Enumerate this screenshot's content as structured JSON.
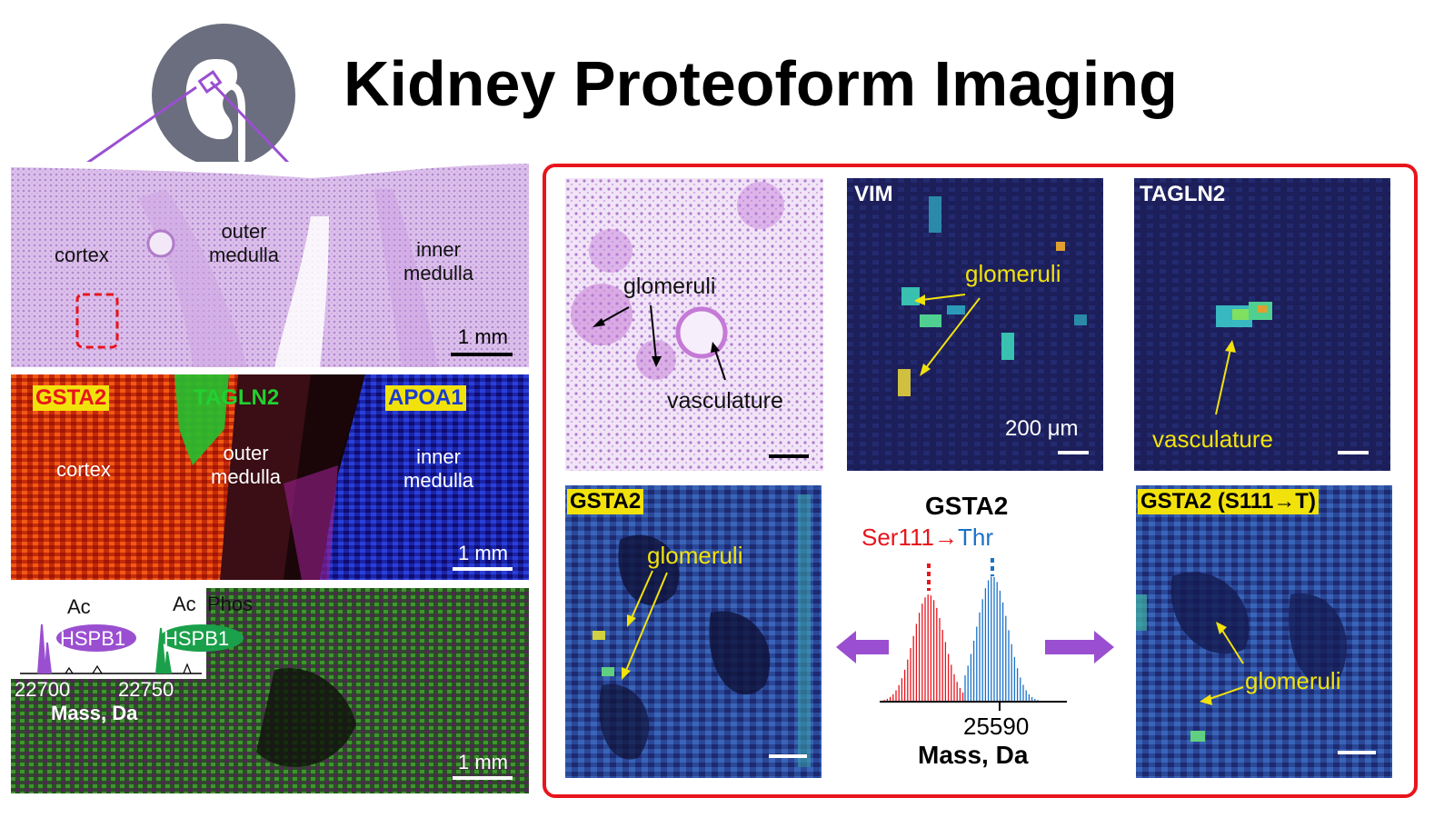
{
  "title": "Kidney Proteoform Imaging",
  "colors": {
    "frame": "#e8141c",
    "purple": "#9a4fd0",
    "yellow": "#f2e20c",
    "he_pink": "#d9b6e8",
    "heat_bg": "#1c1f5a",
    "kidney_icon": "#6b6e7e"
  },
  "icons": [
    "kidney-icon",
    "arrow-left",
    "arrow-right"
  ],
  "he_section": {
    "cortex": "cortex",
    "outer_medulla": "outer\nmedulla",
    "inner_medulla": "inner\nmedulla",
    "scale": "1 mm"
  },
  "overlay_section": {
    "gsta2": "GSTA2",
    "tagln2": "TAGLN2",
    "apoa1": "APOA1",
    "cortex": "cortex",
    "outer_medulla": "outer\nmedulla",
    "inner_medulla": "inner\nmedulla",
    "scale": "1 mm"
  },
  "hspb1_section": {
    "ac1": "Ac",
    "ac2": "Ac",
    "phos": "Phos",
    "hspb1_a": "HSPB1",
    "hspb1_b": "HSPB1",
    "tick1": "22700",
    "tick2": "22750",
    "xlabel": "Mass, Da",
    "scale": "1 mm"
  },
  "zoom": {
    "he": {
      "glomeruli": "glomeruli",
      "vasculature": "vasculature"
    },
    "vim": {
      "title": "VIM",
      "glomeruli": "glomeruli",
      "scale": "200 μm"
    },
    "tagln2": {
      "title": "TAGLN2",
      "vasculature": "vasculature"
    },
    "gsta2": {
      "title": "GSTA2",
      "glomeruli": "glomeruli"
    },
    "gsta2_var": {
      "title": "GSTA2 (S111→T)",
      "glomeruli": "glomeruli"
    },
    "spectrum": {
      "title": "GSTA2",
      "ser": "Ser111",
      "arrow": "→",
      "thr": "Thr",
      "tick": "25590",
      "xlabel": "Mass, Da"
    }
  }
}
